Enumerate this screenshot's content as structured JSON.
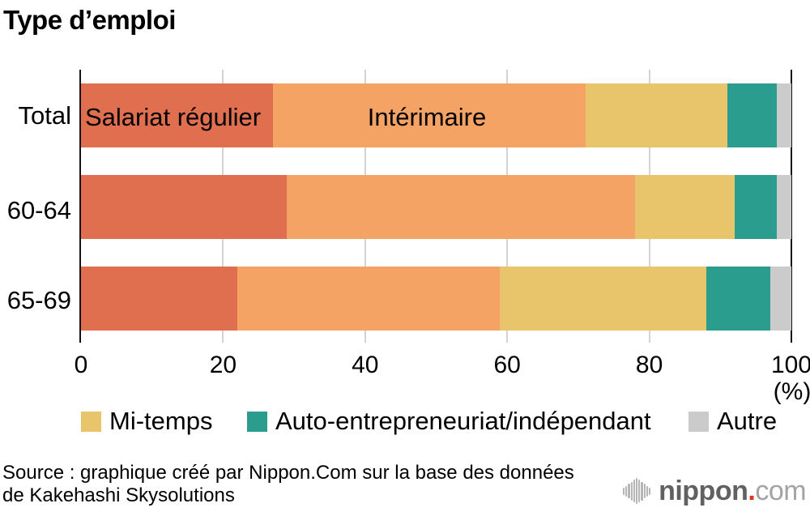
{
  "title": "Type d’emploi",
  "chart_data": {
    "type": "bar",
    "orientation": "horizontal",
    "stacked": true,
    "title": "Type d’emploi",
    "categories": [
      "Total",
      "60-64",
      "65-69"
    ],
    "series": [
      {
        "name": "Salariat régulier",
        "color": "#e06f50",
        "values": [
          27,
          29,
          22
        ]
      },
      {
        "name": "Intérimaire",
        "color": "#f4a364",
        "values": [
          44,
          49,
          37
        ]
      },
      {
        "name": "Mi-temps",
        "color": "#e8c46a",
        "values": [
          20,
          14,
          29
        ]
      },
      {
        "name": "Auto-entrepreneuriat/indépendant",
        "color": "#2b9d8f",
        "values": [
          7,
          6,
          9
        ]
      },
      {
        "name": "Autre",
        "color": "#cbcbcb",
        "values": [
          2,
          2,
          3
        ]
      }
    ],
    "xlim": [
      0,
      100
    ],
    "x_ticks": [
      0,
      20,
      40,
      60,
      80,
      100
    ],
    "x_unit": "(%)",
    "grid": "vertical lines every 20, light gray, black frame at 0 and 100",
    "legend_position": "bottom",
    "inline_bar_labels": [
      "Salariat régulier",
      "Intérimaire"
    ]
  },
  "legend": [
    {
      "label": "Mi-temps",
      "color": "#e8c46a"
    },
    {
      "label": "Auto-entrepreneuriat/indépendant",
      "color": "#2b9d8f"
    },
    {
      "label": "Autre",
      "color": "#cbcbcb"
    }
  ],
  "x_unit_label": "(%)",
  "source": {
    "line1": "Source : graphique créé par Nippon.Com sur la base des données",
    "line2": "de Kakehashi Skysolutions"
  },
  "logo": {
    "name": "nippon",
    "dot": ".",
    "tld": "com",
    "icon": "equalizer-bars-icon",
    "dot_color": "#e83323"
  }
}
